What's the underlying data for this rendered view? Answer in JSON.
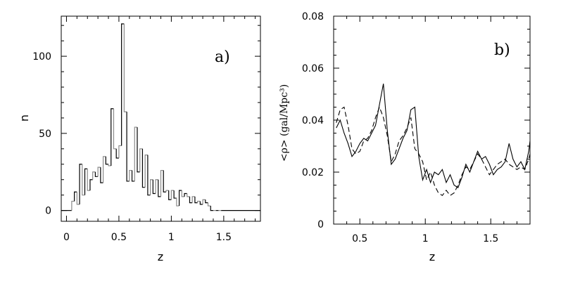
{
  "chart_data": [
    {
      "type": "histogram",
      "panel_label": "a)",
      "xlabel": "z",
      "ylabel": "n",
      "xlim": [
        -0.05,
        1.85
      ],
      "ylim": [
        -7,
        126
      ],
      "xticks": [
        0,
        0.5,
        1,
        1.5
      ],
      "xtick_labels": [
        "0",
        "0.5",
        "1",
        "1.5"
      ],
      "yticks": [
        0,
        50,
        100
      ],
      "ytick_labels": [
        "0",
        "50",
        "100"
      ],
      "bin_width": 0.025,
      "bin_start": 0.05,
      "series": [
        {
          "style": "histogram-step",
          "values": [
            6,
            12,
            4,
            30,
            10,
            27,
            13,
            20,
            25,
            22,
            28,
            18,
            35,
            30,
            29,
            66,
            40,
            34,
            42,
            121,
            64,
            19,
            26,
            19,
            54,
            25,
            40,
            15,
            36,
            10,
            20,
            11,
            20,
            9,
            26,
            12,
            13,
            7,
            13,
            8,
            3,
            13,
            9,
            11,
            9,
            5,
            9,
            5,
            6,
            4,
            7,
            5,
            3,
            0,
            0,
            0,
            0
          ]
        }
      ]
    },
    {
      "type": "line",
      "panel_label": "b)",
      "xlabel": "z",
      "ylabel": "<ρ> (gal/Mpc³)",
      "xlim": [
        0.3,
        1.8
      ],
      "ylim": [
        0,
        0.08
      ],
      "xticks": [
        0.5,
        1,
        1.5
      ],
      "xtick_labels": [
        "0.5",
        "1",
        "1.5"
      ],
      "yticks": [
        0,
        0.02,
        0.04,
        0.06,
        0.08
      ],
      "ytick_labels": [
        "0",
        "0.02",
        "0.04",
        "0.06",
        "0.08"
      ],
      "x": [
        0.32,
        0.35,
        0.38,
        0.41,
        0.44,
        0.47,
        0.5,
        0.53,
        0.56,
        0.59,
        0.62,
        0.65,
        0.68,
        0.71,
        0.74,
        0.77,
        0.8,
        0.83,
        0.86,
        0.89,
        0.92,
        0.95,
        0.98,
        1.01,
        1.04,
        1.07,
        1.1,
        1.13,
        1.16,
        1.19,
        1.22,
        1.25,
        1.28,
        1.31,
        1.34,
        1.37,
        1.4,
        1.43,
        1.46,
        1.49,
        1.52,
        1.55,
        1.58,
        1.61,
        1.64,
        1.67,
        1.7,
        1.73,
        1.76,
        1.79,
        1.8
      ],
      "series": [
        {
          "style": "solid",
          "values": [
            0.037,
            0.04,
            0.035,
            0.031,
            0.026,
            0.028,
            0.031,
            0.033,
            0.032,
            0.035,
            0.038,
            0.046,
            0.054,
            0.036,
            0.023,
            0.025,
            0.029,
            0.033,
            0.036,
            0.044,
            0.045,
            0.026,
            0.017,
            0.021,
            0.016,
            0.02,
            0.019,
            0.021,
            0.016,
            0.019,
            0.015,
            0.014,
            0.018,
            0.023,
            0.02,
            0.024,
            0.028,
            0.025,
            0.026,
            0.023,
            0.019,
            0.021,
            0.022,
            0.024,
            0.031,
            0.025,
            0.022,
            0.024,
            0.021,
            0.028,
            0.032
          ]
        },
        {
          "style": "dashed",
          "values": [
            0.039,
            0.044,
            0.045,
            0.038,
            0.029,
            0.027,
            0.028,
            0.032,
            0.033,
            0.036,
            0.041,
            0.045,
            0.041,
            0.034,
            0.024,
            0.027,
            0.032,
            0.034,
            0.037,
            0.041,
            0.029,
            0.027,
            0.024,
            0.017,
            0.02,
            0.015,
            0.012,
            0.011,
            0.013,
            0.011,
            0.012,
            0.015,
            0.019,
            0.022,
            0.021,
            0.024,
            0.027,
            0.025,
            0.022,
            0.019,
            0.021,
            0.023,
            0.024,
            0.025,
            0.023,
            0.022,
            0.021,
            0.022,
            0.021,
            0.025,
            0.027
          ]
        }
      ]
    }
  ]
}
